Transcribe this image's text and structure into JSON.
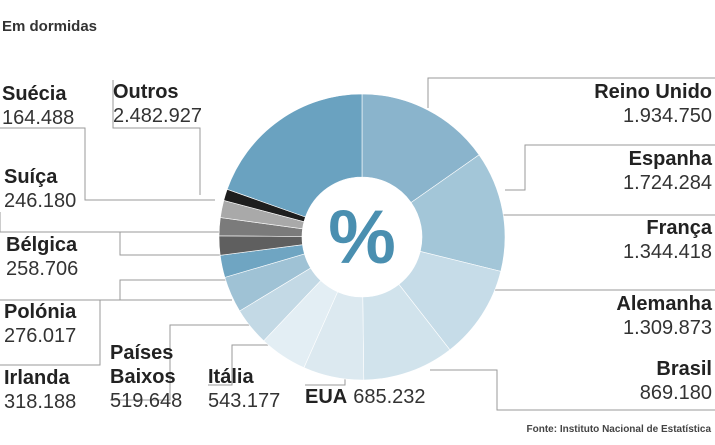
{
  "title": "Em dormidas",
  "source": "Fonte: Instituto Nacional de Estatística",
  "chart_data": {
    "type": "donut",
    "center_label": "%",
    "categories": [
      "Reino Unido",
      "Espanha",
      "França",
      "Alemanha",
      "Brasil",
      "EUA",
      "Itália",
      "Países Baixos",
      "Irlanda",
      "Polónia",
      "Bélgica",
      "Suíça",
      "Suécia",
      "Outros"
    ],
    "values": [
      1934750,
      1724284,
      1344418,
      1309873,
      869180,
      685232,
      543177,
      519648,
      318188,
      276017,
      258706,
      246180,
      164488,
      2482927
    ],
    "value_labels": [
      "1.934.750",
      "1.724.284",
      "1.344.418",
      "1.309.873",
      "869.180",
      "685.232",
      "543.177",
      "519.648",
      "318.188",
      "276.017",
      "258.706",
      "246.180",
      "164.488",
      "2.482.927"
    ],
    "colors": [
      "#8ab4cc",
      "#a3c6d8",
      "#c6dce8",
      "#d1e3ec",
      "#dce9f0",
      "#e3eef4",
      "#c3d9e5",
      "#9fc2d5",
      "#6fa5c2",
      "#5f5f5f",
      "#7b7b7b",
      "#a9a9a9",
      "#1e1e1e",
      "#6aa2c0"
    ]
  }
}
